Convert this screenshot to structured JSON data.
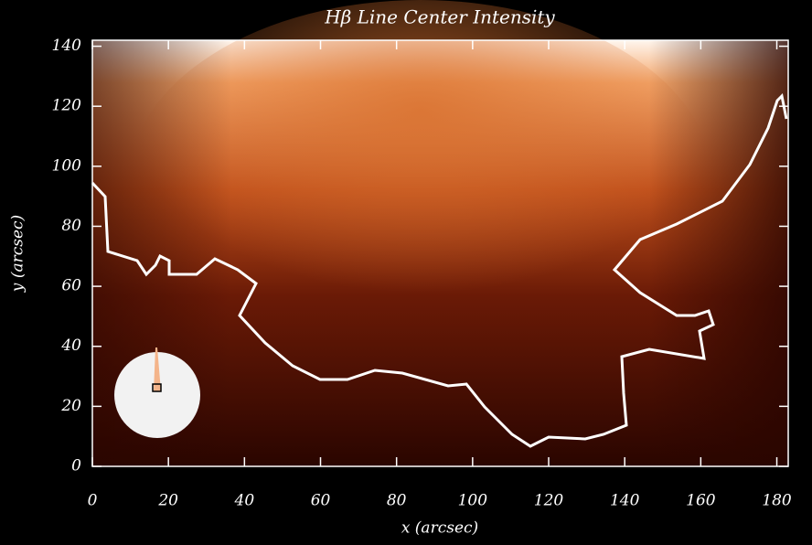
{
  "chart_data": {
    "type": "image",
    "title": "Hβ Line Center Intensity",
    "xlabel": "x (arcsec)",
    "ylabel": "y (arcsec)",
    "xlim": [
      0,
      183
    ],
    "ylim": [
      0,
      142
    ],
    "xticks": [
      0,
      20,
      40,
      60,
      80,
      100,
      120,
      140,
      160,
      180
    ],
    "yticks": [
      0,
      20,
      40,
      60,
      80,
      100,
      120,
      140
    ]
  }
}
